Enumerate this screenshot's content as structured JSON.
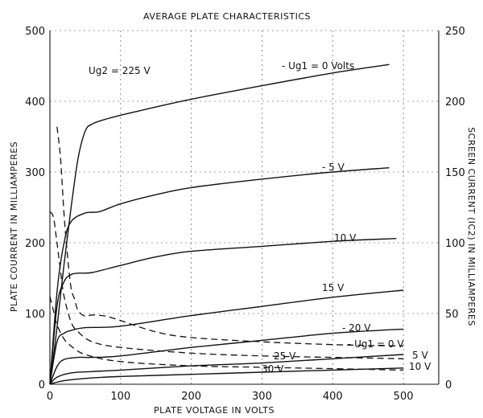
{
  "chart_data": {
    "type": "line",
    "title": "AVERAGE PLATE CHARACTERISTICS",
    "xlabel": "PLATE VOLTAGE IN VOLTS",
    "ylabel": "PLATE COURRENT IN MILLIAMPERES",
    "y2label": "SCREEN CURRENT (IC2) IN MILLIAMPERES",
    "xlim": [
      0,
      550
    ],
    "ylim": [
      0,
      500
    ],
    "y2lim": [
      0,
      250
    ],
    "x_ticks": [
      "0",
      "100",
      "200",
      "300",
      "400",
      "500"
    ],
    "y_ticks": [
      "0",
      "100",
      "200",
      "300",
      "400",
      "500"
    ],
    "y2_ticks": [
      "0",
      "50",
      "100",
      "150",
      "200",
      "250"
    ],
    "grid": true,
    "annotation_ug2": "Ug2 = 225 V",
    "plate_series": [
      {
        "name": "- Ug1 = 0 Volts",
        "x": [
          0,
          10,
          20,
          30,
          40,
          50,
          60,
          80,
          120,
          200,
          300,
          400,
          480
        ],
        "y": [
          0,
          80,
          170,
          250,
          320,
          358,
          368,
          375,
          385,
          403,
          422,
          440,
          452
        ]
      },
      {
        "name": "- 5 V",
        "x": [
          0,
          10,
          20,
          30,
          50,
          70,
          100,
          150,
          200,
          300,
          400,
          480
        ],
        "y": [
          0,
          130,
          200,
          230,
          242,
          244,
          255,
          268,
          278,
          290,
          300,
          306
        ]
      },
      {
        "name": "10 V",
        "x": [
          0,
          10,
          20,
          30,
          40,
          60,
          100,
          150,
          200,
          300,
          400,
          490
        ],
        "y": [
          0,
          110,
          145,
          155,
          157,
          158,
          168,
          180,
          188,
          195,
          202,
          206
        ]
      },
      {
        "name": "15 V",
        "x": [
          0,
          10,
          20,
          30,
          50,
          100,
          200,
          300,
          400,
          500
        ],
        "y": [
          0,
          60,
          72,
          76,
          80,
          82,
          97,
          110,
          123,
          133
        ]
      },
      {
        "name": "- 20 V",
        "x": [
          0,
          10,
          20,
          40,
          60,
          100,
          200,
          300,
          400,
          500
        ],
        "y": [
          0,
          25,
          35,
          38,
          38,
          40,
          52,
          62,
          72,
          78
        ]
      },
      {
        "name": "25 V",
        "x": [
          0,
          10,
          30,
          60,
          100,
          200,
          300,
          400,
          500
        ],
        "y": [
          0,
          10,
          16,
          18,
          20,
          26,
          30,
          36,
          42
        ]
      },
      {
        "name": "30 V",
        "x": [
          0,
          20,
          60,
          100,
          200,
          300,
          400,
          500
        ],
        "y": [
          0,
          5,
          9,
          11,
          14,
          17,
          20,
          23
        ]
      }
    ],
    "screen_series": [
      {
        "name": "- Ug1 = 0 V",
        "x": [
          10,
          15,
          20,
          25,
          30,
          35,
          40,
          50,
          60,
          80,
          100,
          150,
          200,
          300,
          400,
          500
        ],
        "y": [
          182,
          160,
          120,
          90,
          68,
          60,
          52,
          48,
          49,
          48,
          45,
          37,
          33,
          30,
          28,
          27
        ]
      },
      {
        "name": "5 V",
        "x": [
          0,
          5,
          10,
          15,
          20,
          30,
          40,
          60,
          100,
          200,
          300,
          400,
          500
        ],
        "y": [
          122,
          118,
          100,
          80,
          62,
          44,
          37,
          30,
          26,
          22,
          20,
          19,
          18
        ]
      },
      {
        "name": "10 V",
        "x": [
          0,
          5,
          10,
          20,
          30,
          50,
          100,
          200,
          300,
          400,
          500
        ],
        "y": [
          62,
          52,
          42,
          32,
          27,
          21,
          16,
          13,
          12,
          11,
          10
        ]
      }
    ]
  }
}
